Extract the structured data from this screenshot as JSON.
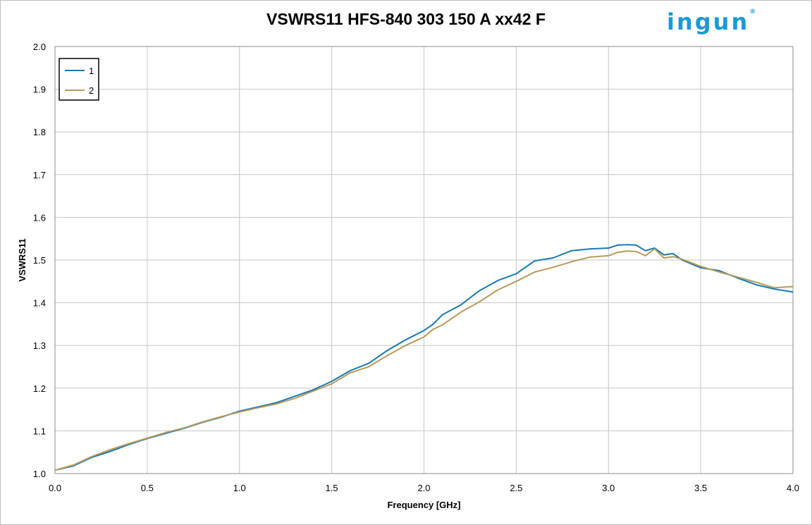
{
  "brand": {
    "logo_text": "ingun"
  },
  "chart_data": {
    "type": "line",
    "title": "VSWRS11 HFS-840 303 150 A xx42 F",
    "xlabel": "Frequency [GHz]",
    "ylabel": "VSWRS11",
    "xlim": [
      0.0,
      4.0
    ],
    "ylim": [
      1.0,
      2.0
    ],
    "x_ticks": [
      "0.0",
      "0.5",
      "1.0",
      "1.5",
      "2.0",
      "2.5",
      "3.0",
      "3.5",
      "4.0"
    ],
    "y_ticks": [
      "1.0",
      "1.1",
      "1.2",
      "1.3",
      "1.4",
      "1.5",
      "1.6",
      "1.7",
      "1.8",
      "1.9",
      "2.0"
    ],
    "grid": true,
    "legend_position": "top-left",
    "colors": {
      "series_1": "#1878b4",
      "series_2": "#b89a5a",
      "grid": "#c6c6c6"
    },
    "series": [
      {
        "name": "1",
        "points": [
          [
            0.0,
            1.008
          ],
          [
            0.1,
            1.018
          ],
          [
            0.2,
            1.038
          ],
          [
            0.3,
            1.052
          ],
          [
            0.4,
            1.068
          ],
          [
            0.5,
            1.082
          ],
          [
            0.6,
            1.094
          ],
          [
            0.7,
            1.106
          ],
          [
            0.8,
            1.12
          ],
          [
            0.9,
            1.132
          ],
          [
            1.0,
            1.146
          ],
          [
            1.1,
            1.156
          ],
          [
            1.2,
            1.166
          ],
          [
            1.3,
            1.181
          ],
          [
            1.4,
            1.196
          ],
          [
            1.5,
            1.216
          ],
          [
            1.6,
            1.241
          ],
          [
            1.7,
            1.258
          ],
          [
            1.8,
            1.288
          ],
          [
            1.9,
            1.313
          ],
          [
            2.0,
            1.335
          ],
          [
            2.05,
            1.35
          ],
          [
            2.1,
            1.372
          ],
          [
            2.2,
            1.395
          ],
          [
            2.3,
            1.428
          ],
          [
            2.4,
            1.452
          ],
          [
            2.5,
            1.468
          ],
          [
            2.6,
            1.498
          ],
          [
            2.7,
            1.505
          ],
          [
            2.8,
            1.522
          ],
          [
            2.9,
            1.526
          ],
          [
            3.0,
            1.528
          ],
          [
            3.05,
            1.535
          ],
          [
            3.1,
            1.536
          ],
          [
            3.15,
            1.535
          ],
          [
            3.2,
            1.522
          ],
          [
            3.25,
            1.528
          ],
          [
            3.3,
            1.512
          ],
          [
            3.35,
            1.515
          ],
          [
            3.4,
            1.5
          ],
          [
            3.5,
            1.482
          ],
          [
            3.6,
            1.475
          ],
          [
            3.7,
            1.458
          ],
          [
            3.8,
            1.442
          ],
          [
            3.9,
            1.432
          ],
          [
            4.0,
            1.425
          ]
        ]
      },
      {
        "name": "2",
        "points": [
          [
            0.0,
            1.008
          ],
          [
            0.1,
            1.02
          ],
          [
            0.2,
            1.04
          ],
          [
            0.3,
            1.056
          ],
          [
            0.4,
            1.07
          ],
          [
            0.5,
            1.083
          ],
          [
            0.6,
            1.096
          ],
          [
            0.7,
            1.107
          ],
          [
            0.8,
            1.121
          ],
          [
            0.9,
            1.133
          ],
          [
            1.0,
            1.144
          ],
          [
            1.1,
            1.154
          ],
          [
            1.2,
            1.163
          ],
          [
            1.3,
            1.176
          ],
          [
            1.4,
            1.193
          ],
          [
            1.5,
            1.21
          ],
          [
            1.6,
            1.236
          ],
          [
            1.7,
            1.25
          ],
          [
            1.8,
            1.276
          ],
          [
            1.9,
            1.3
          ],
          [
            2.0,
            1.32
          ],
          [
            2.05,
            1.338
          ],
          [
            2.1,
            1.348
          ],
          [
            2.2,
            1.378
          ],
          [
            2.3,
            1.402
          ],
          [
            2.4,
            1.43
          ],
          [
            2.5,
            1.45
          ],
          [
            2.6,
            1.472
          ],
          [
            2.7,
            1.483
          ],
          [
            2.8,
            1.496
          ],
          [
            2.9,
            1.507
          ],
          [
            3.0,
            1.51
          ],
          [
            3.05,
            1.518
          ],
          [
            3.1,
            1.521
          ],
          [
            3.15,
            1.52
          ],
          [
            3.2,
            1.51
          ],
          [
            3.25,
            1.526
          ],
          [
            3.3,
            1.505
          ],
          [
            3.35,
            1.508
          ],
          [
            3.4,
            1.502
          ],
          [
            3.5,
            1.485
          ],
          [
            3.6,
            1.472
          ],
          [
            3.7,
            1.46
          ],
          [
            3.8,
            1.448
          ],
          [
            3.9,
            1.435
          ],
          [
            4.0,
            1.438
          ]
        ]
      }
    ]
  }
}
